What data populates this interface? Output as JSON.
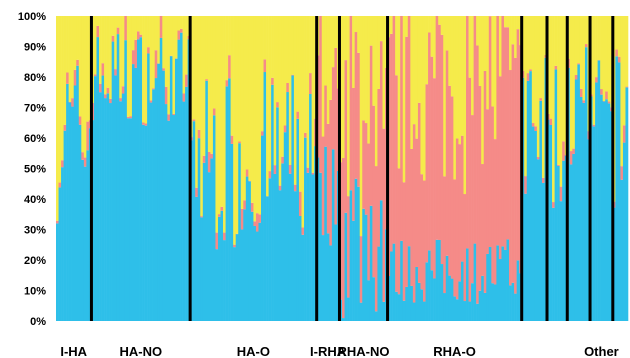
{
  "chart_data": {
    "type": "bar",
    "stacked": true,
    "percent_stacked": true,
    "ylim": [
      0,
      100
    ],
    "yticks": [
      "0%",
      "10%",
      "20%",
      "30%",
      "40%",
      "50%",
      "60%",
      "70%",
      "80%",
      "90%",
      "100%"
    ],
    "groups": [
      {
        "label": "I-HA",
        "count": 14,
        "profile": "blue",
        "base": 60,
        "amp": 28
      },
      {
        "label": "HA-NO",
        "count": 39,
        "profile": "blue",
        "base": 80,
        "amp": 16
      },
      {
        "label": "HA-O",
        "count": 50,
        "profile": "blue",
        "base": 52,
        "amp": 30
      },
      {
        "label": "I-RHA",
        "count": 9,
        "profile": "mix",
        "base": 42,
        "amp": 18
      },
      {
        "label": "RHA-NO",
        "count": 19,
        "profile": "mix",
        "base": 30,
        "amp": 30
      },
      {
        "label": "RHA-O",
        "count": 53,
        "profile": "pink",
        "base": 12,
        "amp": 22
      },
      {
        "label": "",
        "count": 10,
        "profile": "blue",
        "base": 60,
        "amp": 30
      },
      {
        "label": "",
        "count": 8,
        "profile": "blue",
        "base": 60,
        "amp": 30
      },
      {
        "label": "",
        "count": 9,
        "profile": "blue",
        "base": 68,
        "amp": 22
      },
      {
        "label": "Other",
        "count": 9,
        "profile": "blue",
        "base": 62,
        "amp": 26
      },
      {
        "label": "",
        "count": 6,
        "profile": "blue",
        "base": 62,
        "amp": 26
      }
    ],
    "series": [
      {
        "name": "",
        "color": "#2ebfe9"
      },
      {
        "name": "",
        "color": "#f58b88"
      },
      {
        "name": "",
        "color": "#f5eb4b"
      }
    ],
    "separator_color": "#000000"
  }
}
